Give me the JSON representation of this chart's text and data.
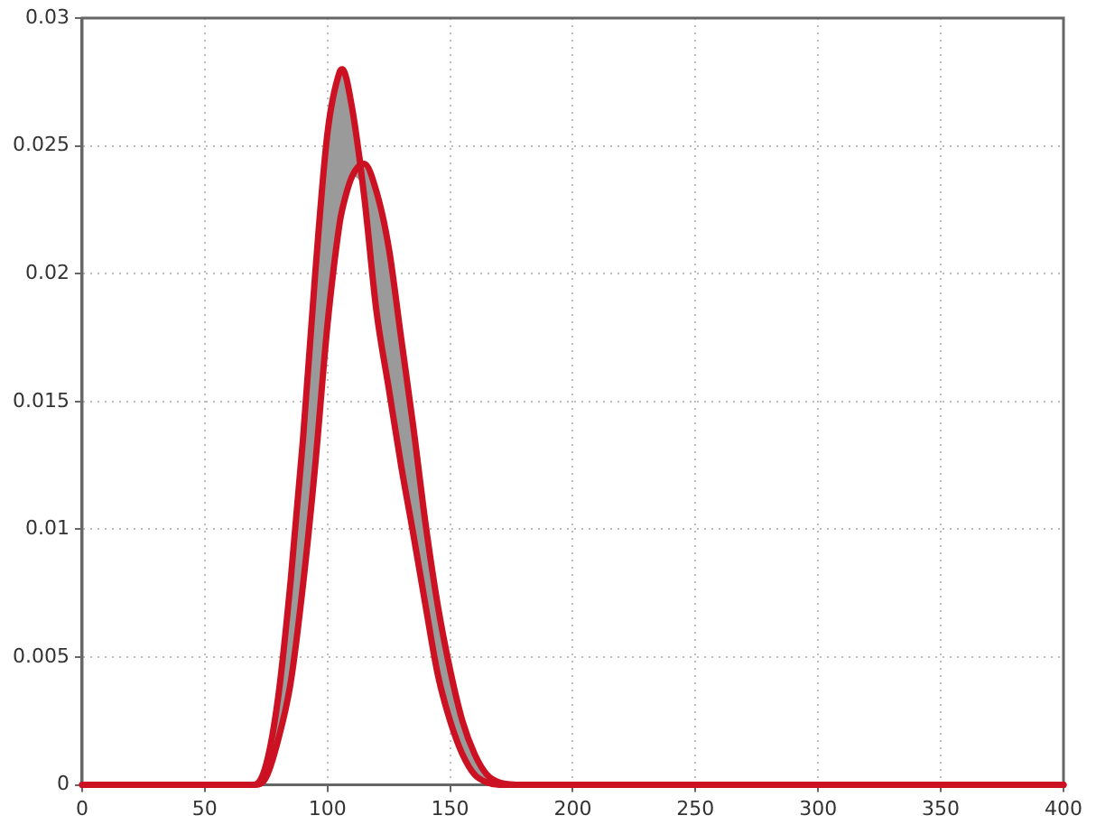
{
  "chart_data": {
    "type": "line",
    "x": [
      0,
      50,
      65,
      70,
      75,
      80,
      85,
      90,
      95,
      100,
      105,
      106,
      110,
      115,
      120,
      125,
      130,
      135,
      140,
      145,
      150,
      155,
      160,
      165,
      170,
      180,
      200,
      300,
      400
    ],
    "series": [
      {
        "color": "#cc1122",
        "values": [
          0,
          0,
          0,
          0,
          0.0008,
          0.0035,
          0.008,
          0.0135,
          0.02,
          0.0255,
          0.0279,
          0.028,
          0.0265,
          0.023,
          0.0185,
          0.0155,
          0.0125,
          0.0098,
          0.007,
          0.0043,
          0.0025,
          0.0012,
          0.0004,
          0.0001,
          0,
          0,
          0,
          0,
          0
        ]
      },
      {
        "color": "#cc1122",
        "values": [
          0,
          0,
          0,
          0,
          0.0003,
          0.0018,
          0.004,
          0.0078,
          0.0125,
          0.018,
          0.022,
          0.0225,
          0.0238,
          0.0243,
          0.0232,
          0.021,
          0.0175,
          0.014,
          0.0102,
          0.007,
          0.0045,
          0.0025,
          0.0012,
          0.0004,
          0.0001,
          0,
          0,
          0,
          0
        ],
        "lower": [
          0,
          0,
          0,
          0,
          0.0003,
          0.0018,
          0.004,
          0.0078,
          0.0125,
          0.018,
          0.022,
          0.0225,
          0.0238,
          0.023,
          0.0185,
          0.0155,
          0.0125,
          0.0098,
          0.007,
          0.0043,
          0.0025,
          0.0012,
          0.0004,
          0.0001,
          0,
          0,
          0,
          0,
          0
        ],
        "upper": [
          0,
          0,
          0,
          0,
          0.0008,
          0.0035,
          0.008,
          0.0135,
          0.02,
          0.0255,
          0.0279,
          0.028,
          0.0265,
          0.0243,
          0.0232,
          0.021,
          0.0175,
          0.014,
          0.0102,
          0.007,
          0.0045,
          0.0025,
          0.0012,
          0.0004,
          0.0001,
          0,
          0,
          0,
          0
        ]
      }
    ],
    "xlim": [
      0,
      400
    ],
    "xticks": [
      0,
      50,
      100,
      150,
      200,
      250,
      300,
      350,
      400
    ],
    "ylim": [
      0,
      0.03
    ],
    "yticks": [
      0,
      0.005,
      0.01,
      0.015,
      0.02,
      0.025,
      0.03
    ],
    "grid": true,
    "marker": "none",
    "line_style": "solid",
    "legend": false
  }
}
